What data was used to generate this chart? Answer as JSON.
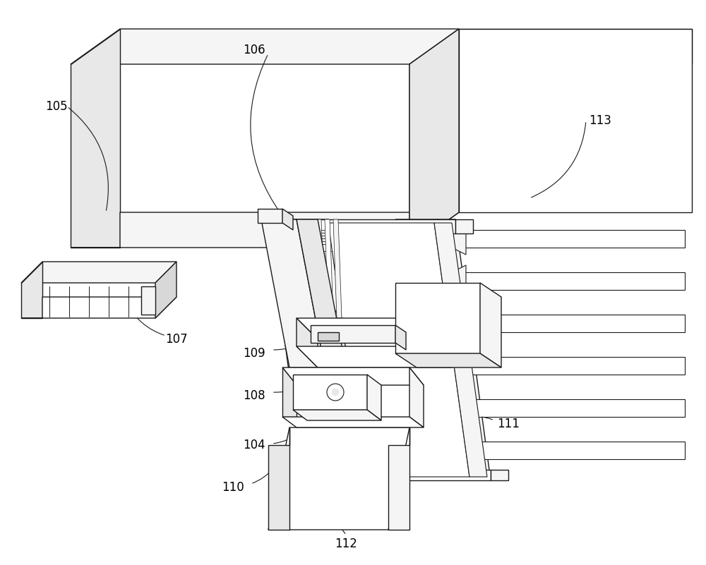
{
  "bg_color": "#ffffff",
  "lc": "#1a1a1a",
  "lw": 1.0,
  "fig_width": 10.0,
  "fig_height": 8.01,
  "dpi": 100,
  "fill_light": "#f5f5f5",
  "fill_mid": "#e8e8e8",
  "fill_dark": "#d8d8d8",
  "fill_white": "#ffffff"
}
